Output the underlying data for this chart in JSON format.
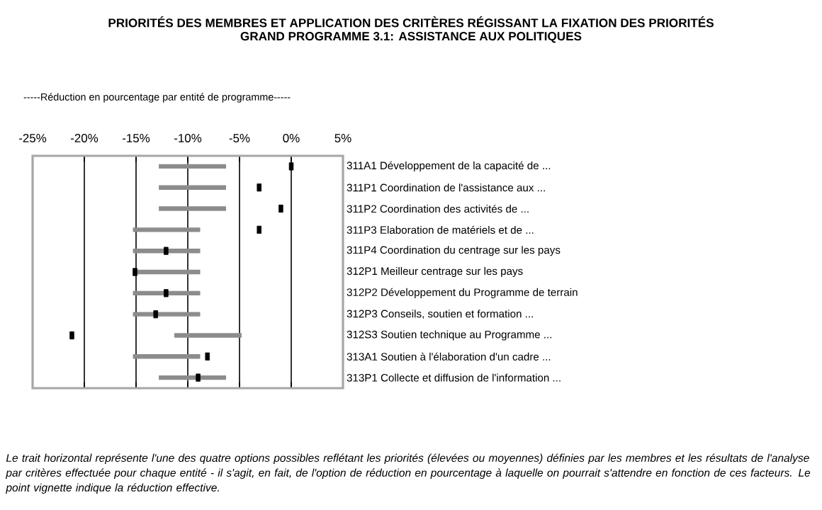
{
  "chart_data": {
    "type": "bar",
    "orientation": "horizontal",
    "title": "PRIORITÉS DES MEMBRES ET APPLICATION DES CRITÈRES RÉGISSANT LA FIXATION DES PRIORITÉS",
    "subtitle": "GRAND PROGRAMME 3.1: ASSISTANCE AUX POLITIQUES",
    "xlabel": "-----Réduction en pourcentage par entité de programme-----",
    "categories": [
      "311A1 Développement de la capacité de ...",
      "311P1 Coordination de l'assistance aux ...",
      "311P2 Coordination des activités de ...",
      "311P3 Elaboration de matériels et de ...",
      "311P4 Coordination du centrage sur les pays",
      "312P1 Meilleur centrage sur les pays",
      "312P2 Développement du Programme de terrain",
      "312P3 Conseils, soutien et formation ...",
      "312S3 Soutien technique au Programme ...",
      "313A1 Soutien à l'élaboration d'un cadre ...",
      "313P1 Collecte et diffusion de l'information ..."
    ],
    "xlim": [
      -25,
      5
    ],
    "xticks": [
      {
        "value": -25,
        "label": "-25%"
      },
      {
        "value": -20,
        "label": "-20%"
      },
      {
        "value": -15,
        "label": "-15%"
      },
      {
        "value": -10,
        "label": "-10%"
      },
      {
        "value": -5,
        "label": "-5%"
      },
      {
        "value": 0,
        "label": "0%"
      },
      {
        "value": 5,
        "label": "5%"
      }
    ],
    "grid": "x",
    "series": [
      {
        "color": "#8c8c8c",
        "base": [
          -12.8,
          -12.8,
          -12.8,
          -15.3,
          -15.3,
          -15.3,
          -15.3,
          -15.3,
          -11.3,
          -15.3,
          -12.8
        ],
        "values": [
          6.5,
          6.5,
          6.5,
          6.5,
          6.5,
          6.5,
          6.5,
          6.5,
          6.5,
          6.5,
          6.5
        ]
      },
      {
        "type": "scatter",
        "color": "#000000",
        "marker": "square",
        "values": [
          0,
          -3.1,
          -1,
          -3.1,
          -12.1,
          -15.1,
          -12.1,
          -13.1,
          -21.2,
          -8.1,
          -9
        ]
      }
    ],
    "annotations": [
      "Le trait horizontal représente l'une des quatre options possibles reflétant les priorités (élevées ou moyennes) définies par les membres et les résultats de l'analyse par critères effectuée pour chaque entité - il s'agit, en fait, de l'option de réduction en pourcentage à laquelle on pourrait s'attendre en fonction de ces facteurs. Le point vignette indique la réduction effective."
    ]
  }
}
